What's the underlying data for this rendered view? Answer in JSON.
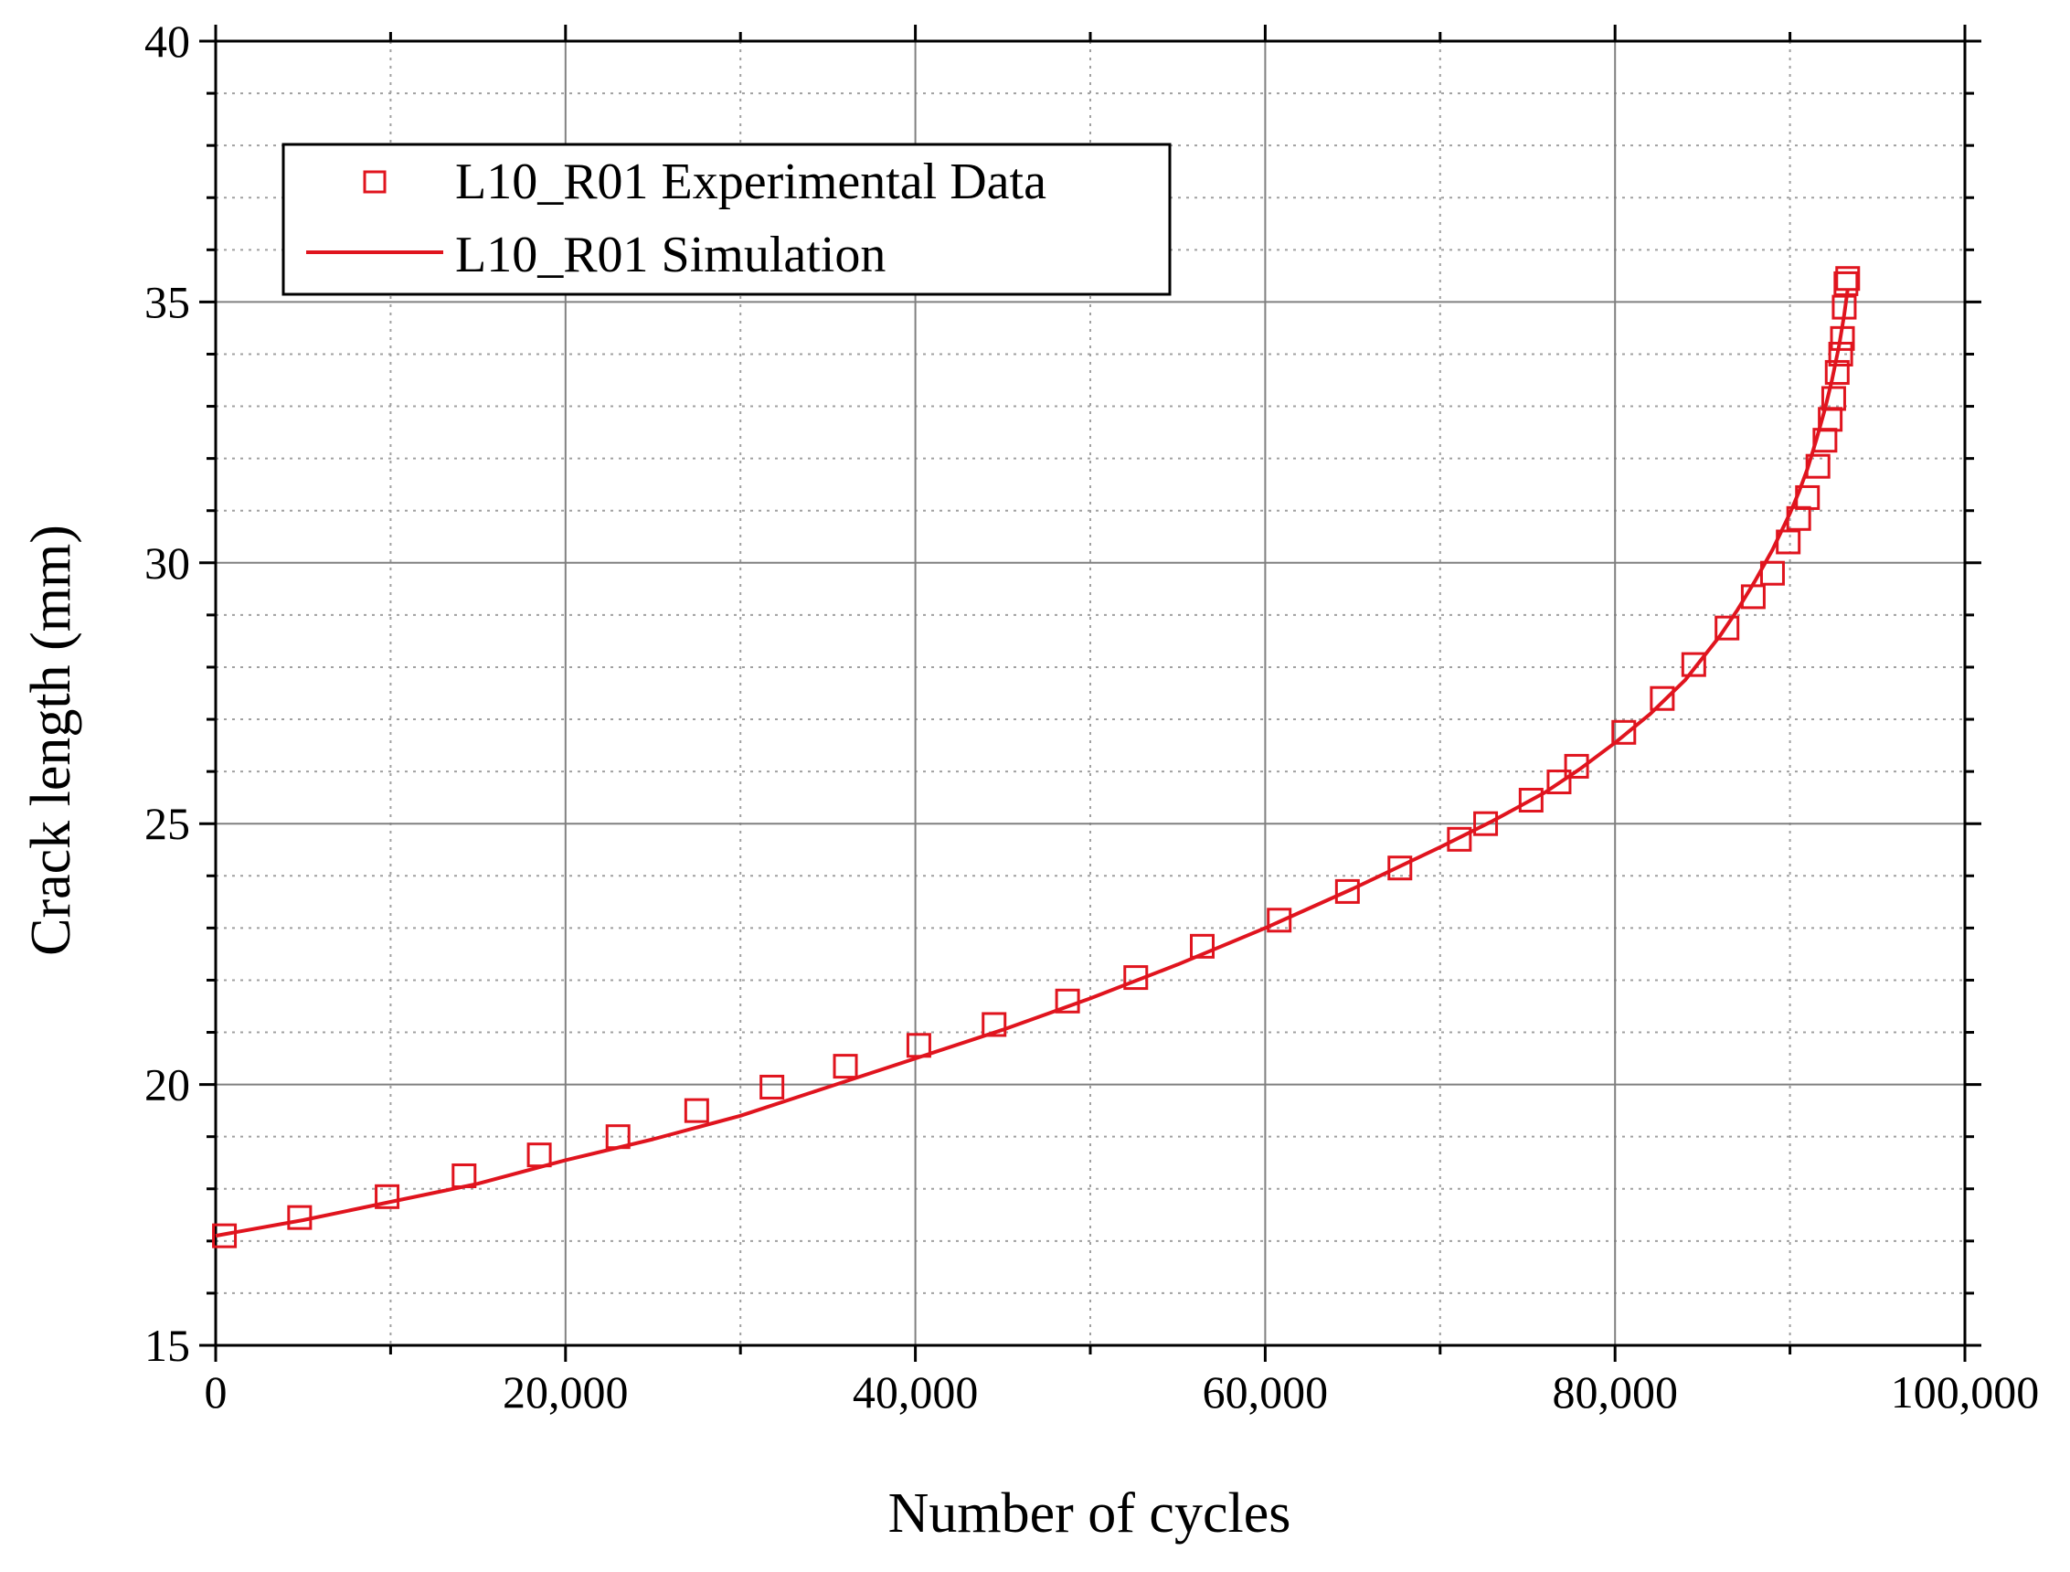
{
  "chart_data": {
    "type": "scatter",
    "title": "",
    "xlabel": "Number of cycles",
    "ylabel": "Crack length (mm)",
    "xlim": [
      0,
      100000
    ],
    "ylim": [
      15,
      40
    ],
    "x_ticks": [
      0,
      20000,
      40000,
      60000,
      80000,
      100000
    ],
    "x_tick_labels": [
      "0",
      "20,000",
      "40,000",
      "60,000",
      "80,000",
      "100,000"
    ],
    "y_ticks": [
      15,
      20,
      25,
      30,
      35,
      40
    ],
    "y_tick_labels": [
      "15",
      "20",
      "25",
      "30",
      "35",
      "40"
    ],
    "x_minor_step": 10000,
    "y_minor_step": 1,
    "grid": true,
    "legend_position": "top-left",
    "colors": {
      "series": "#e0141e",
      "grid_major": "#808080",
      "grid_minor": "#a0a0a0",
      "axis": "#000000"
    },
    "series": [
      {
        "name": "L10_R01 Experimental Data",
        "kind": "markers",
        "marker": "open-square",
        "x": [
          500,
          4800,
          9800,
          14200,
          18500,
          23000,
          27500,
          31800,
          36000,
          40200,
          44500,
          48700,
          52600,
          56400,
          60800,
          64700,
          67700,
          71100,
          72600,
          75200,
          76800,
          77800,
          80500,
          82700,
          84500,
          86400,
          87900,
          89000,
          89900,
          90500,
          91000,
          91600,
          92000,
          92300,
          92500,
          92700,
          92900,
          93000,
          93100,
          93200,
          93300
        ],
        "y": [
          17.1,
          17.45,
          17.85,
          18.25,
          18.65,
          19.0,
          19.5,
          19.95,
          20.35,
          20.75,
          21.15,
          21.6,
          22.05,
          22.65,
          23.15,
          23.7,
          24.15,
          24.7,
          25.0,
          25.45,
          25.8,
          26.1,
          26.75,
          27.4,
          28.05,
          28.75,
          29.35,
          29.8,
          30.4,
          30.85,
          31.25,
          31.85,
          32.35,
          32.75,
          33.15,
          33.65,
          34.0,
          34.3,
          34.9,
          35.35,
          35.45
        ]
      },
      {
        "name": "L10_R01 Simulation",
        "kind": "line",
        "x": [
          0,
          5000,
          10000,
          15000,
          20000,
          25000,
          30000,
          35000,
          40000,
          45000,
          50000,
          55000,
          60000,
          65000,
          70000,
          73000,
          76000,
          78000,
          80000,
          82000,
          84000,
          86000,
          87000,
          88000,
          89000,
          90000,
          90500,
          91000,
          91500,
          92000,
          92400,
          92800,
          93100,
          93300
        ],
        "y": [
          17.1,
          17.4,
          17.75,
          18.1,
          18.55,
          18.95,
          19.4,
          19.95,
          20.5,
          21.05,
          21.65,
          22.3,
          23.0,
          23.75,
          24.55,
          25.05,
          25.6,
          26.05,
          26.55,
          27.1,
          27.75,
          28.6,
          29.1,
          29.65,
          30.25,
          30.95,
          31.35,
          31.8,
          32.35,
          32.95,
          33.5,
          34.15,
          34.75,
          35.25
        ]
      }
    ]
  }
}
